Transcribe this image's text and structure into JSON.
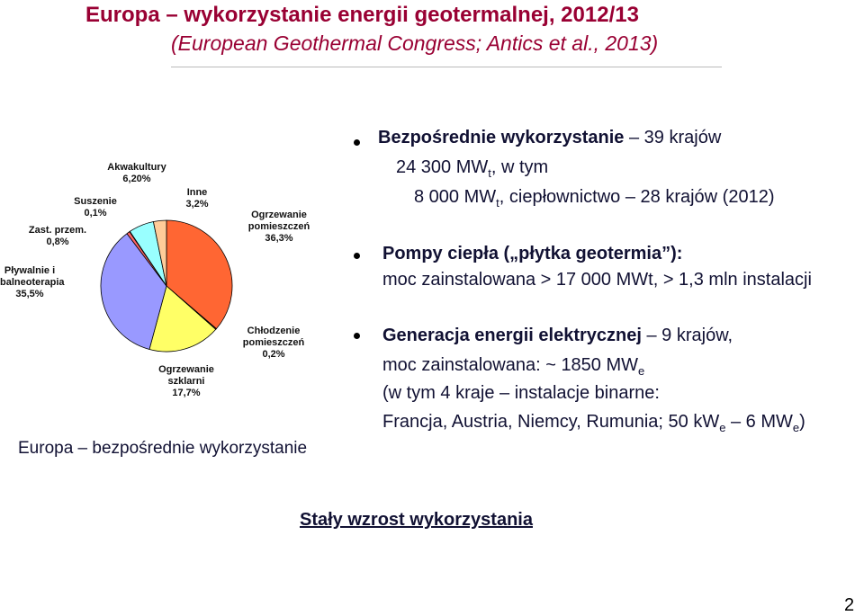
{
  "slide": {
    "title": "Europa – wykorzystanie energii geotermalnej, 2012/13",
    "subtitle": "(European Geothermal Congress; Antics et al., 2013)",
    "caption": "Europa – bezpośrednie wykorzystanie",
    "bullets": [
      {
        "lines": [
          [
            {
              "text": "Bezpośrednie wykorzystanie",
              "bold": true
            },
            {
              "text": " – 39 krajów"
            }
          ],
          [
            {
              "text": "24 300 MW"
            },
            {
              "text": "t",
              "sub": true
            },
            {
              "text": ", w tym"
            }
          ],
          [
            {
              "text": "8 000 MW"
            },
            {
              "text": "t",
              "sub": true
            },
            {
              "text": ", ciepłownictwo – 28 krajów (2012)"
            }
          ]
        ]
      },
      {
        "lines": [
          [
            {
              "text": "Pompy ciepła („płytka geotermia”):",
              "bold": true
            }
          ],
          [
            {
              "text": "moc zainstalowana > 17 000 MWt, > 1,3 mln instalacji"
            }
          ]
        ]
      },
      {
        "lines": [
          [
            {
              "text": "Generacja energii elektrycznej",
              "bold": true
            },
            {
              "text": " – 9 krajów,"
            }
          ],
          [
            {
              "text": "moc zainstalowana: ~ 1850 MW"
            },
            {
              "text": "e",
              "sub": true
            }
          ],
          [
            {
              "text": "(w tym 4 kraje – instalacje binarne:"
            }
          ],
          [
            {
              "text": "Francja, Austria, Niemcy, Rumunia; 50 kW"
            },
            {
              "text": "e",
              "sub": true
            },
            {
              "text": " – 6 MW"
            },
            {
              "text": "e",
              "sub": true
            },
            {
              "text": ")"
            }
          ]
        ]
      }
    ],
    "footer": "Stały wzrost wykorzystania",
    "page_number": "2"
  },
  "chart_data": {
    "type": "pie",
    "categories": [
      "Ogrzewanie pomieszczeń",
      "Chłodzenie pomieszczeń",
      "Ogrzewanie szklarni",
      "Pływalnie i balneoterapia",
      "Zast. przem.",
      "Suszenie",
      "Akwakultury",
      "Inne"
    ],
    "values": [
      36.3,
      0.2,
      17.7,
      35.5,
      0.8,
      0.1,
      6.2,
      3.2
    ],
    "value_labels": [
      "36,3%",
      "0,2%",
      "17,7%",
      "35,5%",
      "0,8%",
      "0,1%",
      "6,20%",
      "3,2%"
    ],
    "colors": [
      "#ff6633",
      "#cc3333",
      "#ffff66",
      "#9999ff",
      "#ff6666",
      "#993366",
      "#99ffff",
      "#ffcc99"
    ]
  }
}
